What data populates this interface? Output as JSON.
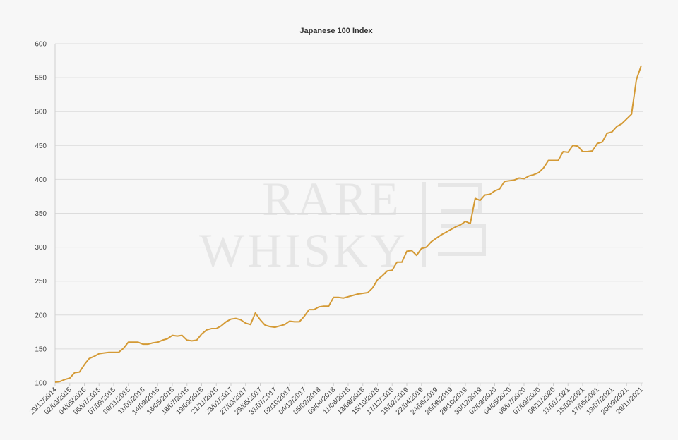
{
  "chart_data": {
    "type": "line",
    "title": "Japanese 100 Index",
    "watermark": [
      "RARE",
      "WHISKY"
    ],
    "color": "#d49a35",
    "grid": true,
    "ylim": [
      100,
      600
    ],
    "yticks": [
      100,
      150,
      200,
      250,
      300,
      350,
      400,
      450,
      500,
      550,
      600
    ],
    "categories": [
      "29/12/2014",
      null,
      null,
      "02/03/2015",
      null,
      null,
      "04/05/2015",
      null,
      null,
      "06/07/2015",
      null,
      null,
      "07/09/2015",
      null,
      null,
      "09/11/2015",
      null,
      null,
      "11/01/2016",
      null,
      null,
      "14/03/2016",
      null,
      null,
      "16/05/2016",
      null,
      null,
      "18/07/2016",
      null,
      null,
      "19/09/2016",
      null,
      null,
      "21/11/2016",
      null,
      null,
      "23/01/2017",
      null,
      null,
      "27/03/2017",
      null,
      null,
      "29/05/2017",
      null,
      null,
      "31/07/2017",
      null,
      null,
      "02/10/2017",
      null,
      null,
      "04/12/2017",
      null,
      null,
      "05/02/2018",
      null,
      null,
      "09/04/2018",
      null,
      null,
      "11/06/2018",
      null,
      null,
      "13/08/2018",
      null,
      null,
      "15/10/2018",
      null,
      null,
      "17/12/2018",
      null,
      null,
      "18/02/2019",
      null,
      null,
      "22/04/2019",
      null,
      null,
      "24/06/2019",
      null,
      null,
      "26/08/2019",
      null,
      null,
      "28/10/2019",
      null,
      null,
      "30/12/2019",
      null,
      null,
      "02/03/2020",
      null,
      null,
      "04/05/2020",
      null,
      null,
      "06/07/2020",
      null,
      null,
      "07/09/2020",
      null,
      null,
      "09/11/2020",
      null,
      null,
      "11/01/2021",
      null,
      null,
      "15/03/2021",
      null,
      null,
      "17/05/2021",
      null,
      null,
      "19/07/2021",
      null,
      null,
      "20/09/2021",
      null,
      null,
      "29/11/2021"
    ],
    "values": [
      101,
      102,
      105,
      107,
      115,
      116,
      127,
      136,
      139,
      143,
      144,
      145,
      145,
      145,
      151,
      160,
      160,
      160,
      157,
      157,
      159,
      160,
      163,
      165,
      170,
      169,
      170,
      163,
      162,
      163,
      172,
      178,
      180,
      180,
      184,
      190,
      194,
      195,
      193,
      188,
      186,
      203,
      193,
      185,
      183,
      182,
      184,
      186,
      191,
      190,
      190,
      198,
      208,
      208,
      212,
      213,
      213,
      226,
      226,
      225,
      227,
      229,
      231,
      232,
      233,
      240,
      252,
      258,
      265,
      266,
      278,
      278,
      294,
      295,
      288,
      298,
      300,
      308,
      313,
      318,
      322,
      326,
      330,
      333,
      338,
      335,
      372,
      369,
      377,
      378,
      383,
      386,
      397,
      398,
      399,
      402,
      401,
      405,
      407,
      410,
      417,
      428,
      428,
      428,
      441,
      440,
      450,
      449,
      441,
      441,
      442,
      453,
      455,
      468,
      470,
      478,
      482,
      489,
      496,
      547,
      568
    ]
  }
}
